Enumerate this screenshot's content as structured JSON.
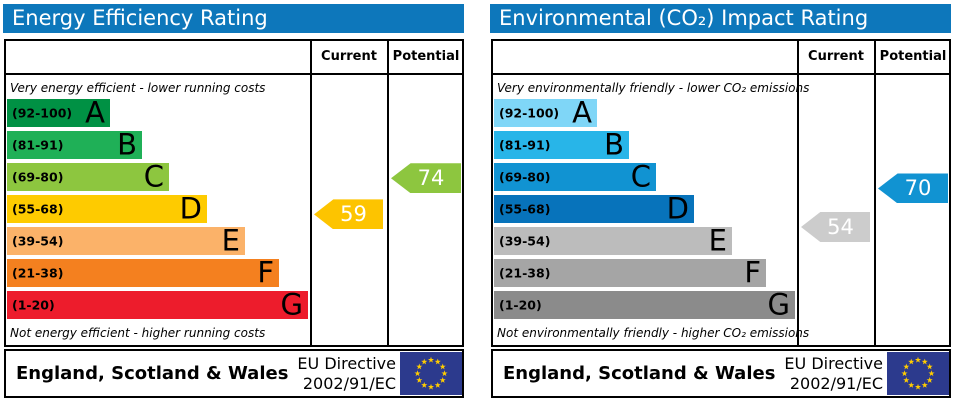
{
  "theme": {
    "header_bg": "#0d77bb",
    "border_color": "#000000",
    "eu_flag_blue": "#2c3a8d",
    "eu_star_yellow": "#ffcc00",
    "arrow_text": "#ffffff"
  },
  "panels": [
    {
      "title": "Energy Efficiency Rating",
      "columns": {
        "current": "Current",
        "potential": "Potential"
      },
      "top_caption": "Very energy efficient - lower running costs",
      "bottom_caption": "Not energy efficient - higher running costs",
      "bands": [
        {
          "letter": "A",
          "range": "(92-100)",
          "min": 92,
          "max": 100,
          "color": "#009144"
        },
        {
          "letter": "B",
          "range": "(81-91)",
          "min": 81,
          "max": 91,
          "color": "#1fb057"
        },
        {
          "letter": "C",
          "range": "(69-80)",
          "min": 69,
          "max": 80,
          "color": "#8dc63f"
        },
        {
          "letter": "D",
          "range": "(55-68)",
          "min": 55,
          "max": 68,
          "color": "#fecb00"
        },
        {
          "letter": "E",
          "range": "(39-54)",
          "min": 39,
          "max": 54,
          "color": "#fbb269"
        },
        {
          "letter": "F",
          "range": "(21-38)",
          "min": 21,
          "max": 38,
          "color": "#f4801f"
        },
        {
          "letter": "G",
          "range": "(1-20)",
          "min": 1,
          "max": 20,
          "color": "#ed1c2c"
        }
      ],
      "current": {
        "value": 59,
        "color": "#fdc400"
      },
      "potential": {
        "value": 74,
        "color": "#8dc63f"
      },
      "footer": {
        "region": "England, Scotland & Wales",
        "directive_line1": "EU Directive",
        "directive_line2": "2002/91/EC"
      }
    },
    {
      "title": "Environmental (CO₂) Impact Rating",
      "columns": {
        "current": "Current",
        "potential": "Potential"
      },
      "top_caption": "Very environmentally friendly - lower CO₂ emissions",
      "bottom_caption": "Not environmentally friendly - higher CO₂ emissions",
      "bands": [
        {
          "letter": "A",
          "range": "(92-100)",
          "min": 92,
          "max": 100,
          "color": "#7fd6f7"
        },
        {
          "letter": "B",
          "range": "(81-91)",
          "min": 81,
          "max": 91,
          "color": "#28b5e8"
        },
        {
          "letter": "C",
          "range": "(69-80)",
          "min": 69,
          "max": 80,
          "color": "#1193d2"
        },
        {
          "letter": "D",
          "range": "(55-68)",
          "min": 55,
          "max": 68,
          "color": "#0773bb"
        },
        {
          "letter": "E",
          "range": "(39-54)",
          "min": 39,
          "max": 54,
          "color": "#bcbcbc"
        },
        {
          "letter": "F",
          "range": "(21-38)",
          "min": 21,
          "max": 38,
          "color": "#a5a5a5"
        },
        {
          "letter": "G",
          "range": "(1-20)",
          "min": 1,
          "max": 20,
          "color": "#8b8b8b"
        }
      ],
      "current": {
        "value": 54,
        "color": "#cccccc"
      },
      "potential": {
        "value": 70,
        "color": "#1193d2"
      },
      "footer": {
        "region": "England, Scotland & Wales",
        "directive_line1": "EU Directive",
        "directive_line2": "2002/91/EC"
      }
    }
  ],
  "chart_data": [
    {
      "type": "bar",
      "title": "Energy Efficiency Rating",
      "categories": [
        "A (92-100)",
        "B (81-91)",
        "C (69-80)",
        "D (55-68)",
        "E (39-54)",
        "F (21-38)",
        "G (1-20)"
      ],
      "band_colors": [
        "#009144",
        "#1fb057",
        "#8dc63f",
        "#fecb00",
        "#fbb269",
        "#f4801f",
        "#ed1c2c"
      ],
      "series": [
        {
          "name": "Current",
          "values": [
            59
          ],
          "band": "D",
          "color": "#fdc400"
        },
        {
          "name": "Potential",
          "values": [
            74
          ],
          "band": "C",
          "color": "#8dc63f"
        }
      ],
      "value_range": [
        1,
        100
      ],
      "top_label": "Very energy efficient - lower running costs",
      "bottom_label": "Not energy efficient - higher running costs",
      "footer": "England, Scotland & Wales | EU Directive 2002/91/EC"
    },
    {
      "type": "bar",
      "title": "Environmental (CO₂) Impact Rating",
      "categories": [
        "A (92-100)",
        "B (81-91)",
        "C (69-80)",
        "D (55-68)",
        "E (39-54)",
        "F (21-38)",
        "G (1-20)"
      ],
      "band_colors": [
        "#7fd6f7",
        "#28b5e8",
        "#1193d2",
        "#0773bb",
        "#bcbcbc",
        "#a5a5a5",
        "#8b8b8b"
      ],
      "series": [
        {
          "name": "Current",
          "values": [
            54
          ],
          "band": "E",
          "color": "#cccccc"
        },
        {
          "name": "Potential",
          "values": [
            70
          ],
          "band": "C",
          "color": "#1193d2"
        }
      ],
      "value_range": [
        1,
        100
      ],
      "top_label": "Very environmentally friendly - lower CO₂ emissions",
      "bottom_label": "Not environmentally friendly - higher CO₂ emissions",
      "footer": "England, Scotland & Wales | EU Directive 2002/91/EC"
    }
  ]
}
